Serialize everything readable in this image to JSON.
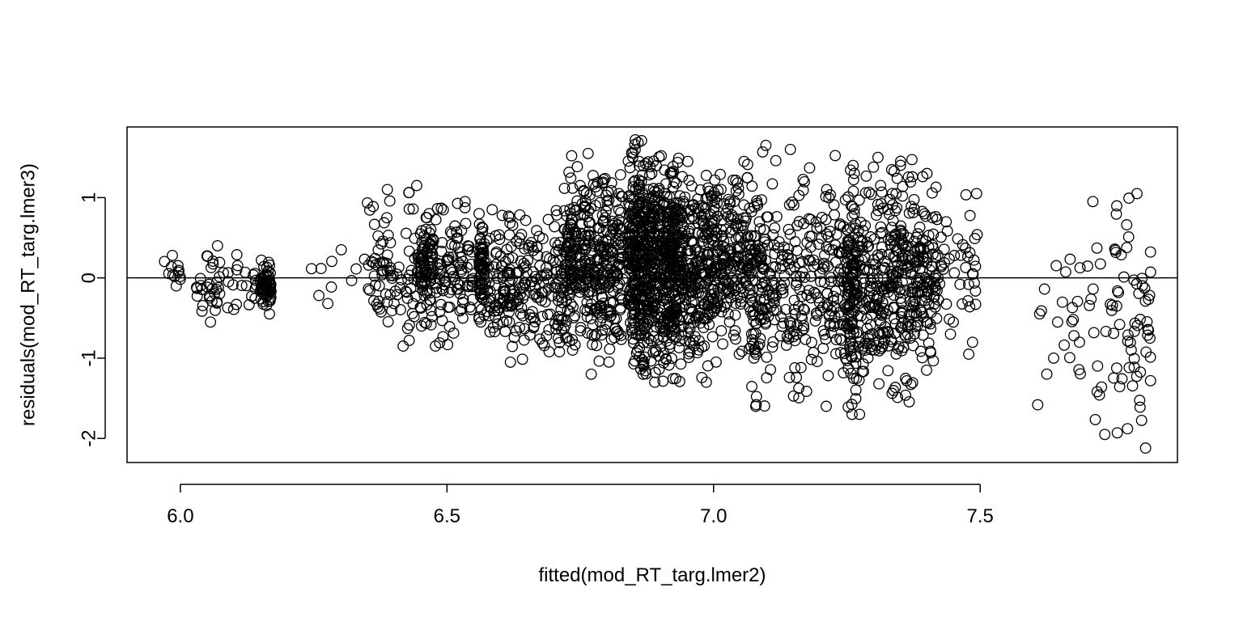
{
  "chart_data": {
    "type": "scatter",
    "xlabel": "fitted(mod_RT_targ.lmer2)",
    "ylabel": "residuals(mod_RT_targ.lmer3)",
    "xlim": [
      5.9,
      7.87
    ],
    "ylim": [
      -2.3,
      1.88
    ],
    "x_ticks": [
      6.0,
      6.5,
      7.0,
      7.5
    ],
    "x_tick_labels": [
      "6.0",
      "6.5",
      "7.0",
      "7.5"
    ],
    "y_ticks": [
      -2,
      -1,
      0,
      1
    ],
    "y_tick_labels": [
      "-2",
      "-1",
      "0",
      "1"
    ],
    "reference_line": {
      "orientation": "horizontal",
      "y": 0
    },
    "grid": false,
    "legend": "none",
    "marker": "open-circle",
    "marker_color": "#000000",
    "point_count_approx": 3100,
    "clusters": [
      {
        "x": [
          5.97,
          6.0
        ],
        "n": 12,
        "y_min": -0.1,
        "y_max": 0.28
      },
      {
        "x": [
          6.03,
          6.15
        ],
        "n": 55,
        "y_min": -0.55,
        "y_max": 0.4
      },
      {
        "x": [
          6.15,
          6.17
        ],
        "n": 70,
        "y_min": -0.45,
        "y_max": 0.22
      },
      {
        "x": [
          6.22,
          6.35
        ],
        "n": 10,
        "y_min": -0.32,
        "y_max": 0.35
      },
      {
        "x": [
          6.35,
          6.45
        ],
        "n": 90,
        "y_min": -0.85,
        "y_max": 1.15
      },
      {
        "x": [
          6.45,
          6.47
        ],
        "n": 70,
        "y_min": -0.6,
        "y_max": 0.8
      },
      {
        "x": [
          6.47,
          6.55
        ],
        "n": 110,
        "y_min": -0.85,
        "y_max": 0.95
      },
      {
        "x": [
          6.56,
          6.57
        ],
        "n": 70,
        "y_min": -0.55,
        "y_max": 0.8
      },
      {
        "x": [
          6.57,
          6.72
        ],
        "n": 230,
        "y_min": -1.05,
        "y_max": 0.85
      },
      {
        "x": [
          6.72,
          6.74
        ],
        "n": 90,
        "y_min": -0.9,
        "y_max": 1.52
      },
      {
        "x": [
          6.74,
          6.83
        ],
        "n": 290,
        "y_min": -1.2,
        "y_max": 1.55
      },
      {
        "x": [
          6.84,
          6.87
        ],
        "n": 250,
        "y_min": -1.2,
        "y_max": 1.72
      },
      {
        "x": [
          6.87,
          6.94
        ],
        "n": 480,
        "y_min": -1.3,
        "y_max": 1.52
      },
      {
        "x": [
          6.94,
          7.01
        ],
        "n": 260,
        "y_min": -1.3,
        "y_max": 1.45
      },
      {
        "x": [
          7.01,
          7.07
        ],
        "n": 160,
        "y_min": -0.95,
        "y_max": 1.45
      },
      {
        "x": [
          7.07,
          7.1
        ],
        "n": 100,
        "y_min": -1.6,
        "y_max": 1.65
      },
      {
        "x": [
          7.1,
          7.25
        ],
        "n": 240,
        "y_min": -1.6,
        "y_max": 1.6
      },
      {
        "x": [
          7.25,
          7.27
        ],
        "n": 120,
        "y_min": -1.7,
        "y_max": 1.4
      },
      {
        "x": [
          7.27,
          7.38
        ],
        "n": 300,
        "y_min": -1.7,
        "y_max": 1.5
      },
      {
        "x": [
          7.38,
          7.42
        ],
        "n": 100,
        "y_min": -1.15,
        "y_max": 1.3
      },
      {
        "x": [
          7.42,
          7.5
        ],
        "n": 45,
        "y_min": -0.95,
        "y_max": 1.05
      },
      {
        "x": [
          7.6,
          7.75
        ],
        "n": 40,
        "y_min": -1.95,
        "y_max": 0.95
      },
      {
        "x": [
          7.75,
          7.82
        ],
        "n": 60,
        "y_min": -2.12,
        "y_max": 1.05
      }
    ]
  }
}
